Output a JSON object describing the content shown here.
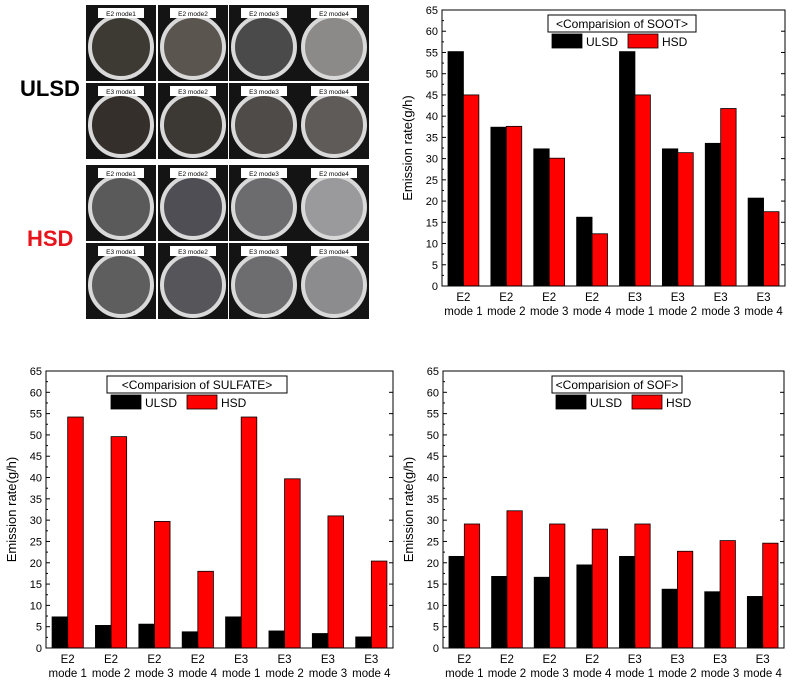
{
  "photos": {
    "ulsd_label": "ULSD",
    "hsd_label": "HSD",
    "ulsd_color": "#000000",
    "hsd_color": "#e8141c",
    "ulsd_rows": [
      [
        "E2 mode1",
        "E2 mode2",
        "E2 mode3",
        "E2 mode4"
      ],
      [
        "E3 mode1",
        "E3 mode2",
        "E3 mode3",
        "E3 mode4"
      ]
    ],
    "hsd_rows": [
      [
        "E2 mode1",
        "E2 mode2",
        "E2 mode3",
        "E2 mode4"
      ],
      [
        "E3 mode1",
        "E3 mode2",
        "E3 mode3",
        "E3 mode4"
      ]
    ],
    "ulsd_filter_colors": [
      [
        "#3d3933",
        "#5a554f",
        "#4a4a4a",
        "#8c8a88"
      ],
      [
        "#342f2a",
        "#3c3833",
        "#4e4b48",
        "#5f5b58"
      ]
    ],
    "hsd_filter_colors": [
      [
        "#5a5a5a",
        "#4f4e54",
        "#6c6c6e",
        "#9a9a9c"
      ],
      [
        "#5e5e5e",
        "#56555a",
        "#6d6d70",
        "#8c8c8e"
      ]
    ]
  },
  "chart_data": [
    {
      "type": "bar",
      "title": "<Comparision of SOOT>",
      "ylabel": "Emission rate(g/h)",
      "ylim": [
        0,
        65
      ],
      "yticks": [
        "0",
        "5",
        "10",
        "15",
        "20",
        "25",
        "30",
        "35",
        "40",
        "45",
        "50",
        "55",
        "60",
        "65"
      ],
      "categories": [
        [
          "E2",
          "mode 1"
        ],
        [
          "E2",
          "mode 2"
        ],
        [
          "E2",
          "mode 3"
        ],
        [
          "E2",
          "mode 4"
        ],
        [
          "E3",
          "mode 1"
        ],
        [
          "E3",
          "mode 2"
        ],
        [
          "E3",
          "mode 3"
        ],
        [
          "E3",
          "mode 4"
        ]
      ],
      "series": [
        {
          "name": "ULSD",
          "color": "#000000",
          "values": [
            55.2,
            37.4,
            32.3,
            16.2,
            55.2,
            32.3,
            33.6,
            20.7
          ]
        },
        {
          "name": "HSD",
          "color": "#ff0000",
          "values": [
            45.0,
            37.6,
            30.1,
            12.3,
            45.0,
            31.4,
            41.8,
            17.5
          ]
        }
      ]
    },
    {
      "type": "bar",
      "title": "<Comparision of SULFATE>",
      "ylabel": "Emission rate(g/h)",
      "ylim": [
        0,
        65
      ],
      "yticks": [
        "0",
        "5",
        "10",
        "15",
        "20",
        "25",
        "30",
        "35",
        "40",
        "45",
        "50",
        "55",
        "60",
        "65"
      ],
      "categories": [
        [
          "E2",
          "mode 1"
        ],
        [
          "E2",
          "mode 2"
        ],
        [
          "E2",
          "mode 3"
        ],
        [
          "E2",
          "mode 4"
        ],
        [
          "E3",
          "mode 1"
        ],
        [
          "E3",
          "mode 2"
        ],
        [
          "E3",
          "mode 3"
        ],
        [
          "E3",
          "mode 4"
        ]
      ],
      "series": [
        {
          "name": "ULSD",
          "color": "#000000",
          "values": [
            7.3,
            5.3,
            5.6,
            3.8,
            7.3,
            4.0,
            3.4,
            2.6
          ]
        },
        {
          "name": "HSD",
          "color": "#ff0000",
          "values": [
            54.2,
            49.6,
            29.7,
            18.0,
            54.2,
            39.7,
            31.0,
            20.4
          ]
        }
      ]
    },
    {
      "type": "bar",
      "title": "<Comparision of SOF>",
      "ylabel": "Emission rate(g/h)",
      "ylim": [
        0,
        65
      ],
      "yticks": [
        "0",
        "5",
        "10",
        "15",
        "20",
        "25",
        "30",
        "35",
        "40",
        "45",
        "50",
        "55",
        "60",
        "65"
      ],
      "categories": [
        [
          "E2",
          "mode 1"
        ],
        [
          "E2",
          "mode 2"
        ],
        [
          "E2",
          "mode 3"
        ],
        [
          "E2",
          "mode 4"
        ],
        [
          "E3",
          "mode 1"
        ],
        [
          "E3",
          "mode 2"
        ],
        [
          "E3",
          "mode 3"
        ],
        [
          "E3",
          "mode 4"
        ]
      ],
      "series": [
        {
          "name": "ULSD",
          "color": "#000000",
          "values": [
            21.5,
            16.8,
            16.6,
            19.5,
            21.5,
            13.8,
            13.2,
            12.1
          ]
        },
        {
          "name": "HSD",
          "color": "#ff0000",
          "values": [
            29.1,
            32.2,
            29.1,
            27.9,
            29.1,
            22.7,
            25.2,
            24.6
          ]
        }
      ]
    }
  ]
}
